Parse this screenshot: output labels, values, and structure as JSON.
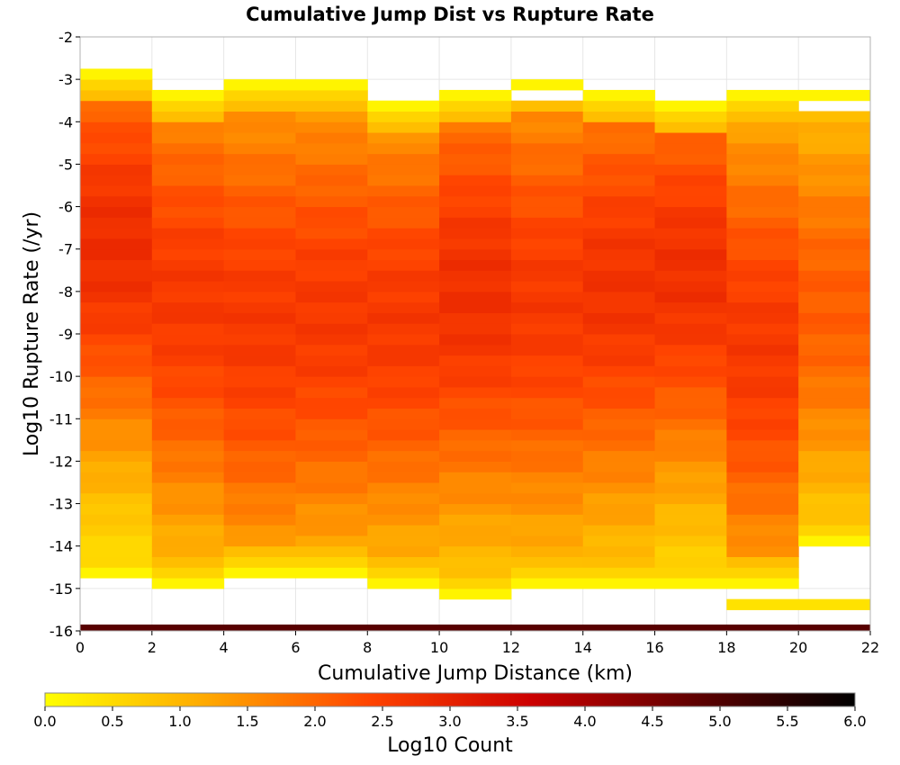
{
  "chart_data": {
    "type": "heatmap",
    "title": "Cumulative Jump Dist vs Rupture Rate",
    "xlabel": "Cumulative Jump Distance (km)",
    "ylabel": "Log10 Rupture Rate (/yr)",
    "xlim": [
      0,
      22
    ],
    "ylim": [
      -16,
      -2
    ],
    "x_bin_width": 2,
    "y_bin_width": 0.25,
    "xticks": [
      "0",
      "2",
      "4",
      "6",
      "8",
      "10",
      "12",
      "14",
      "16",
      "18",
      "20",
      "22"
    ],
    "yticks": [
      "-2",
      "-3",
      "-4",
      "-5",
      "-6",
      "-7",
      "-8",
      "-9",
      "-10",
      "-11",
      "-12",
      "-13",
      "-14",
      "-15",
      "-16"
    ],
    "grid": true,
    "colorbar": {
      "label": "Log10 Count",
      "range": [
        0,
        6
      ],
      "ticks": [
        "0.0",
        "0.5",
        "1.0",
        "1.5",
        "2.0",
        "2.5",
        "3.0",
        "3.5",
        "4.0",
        "4.5",
        "5.0",
        "5.5",
        "6.0"
      ],
      "colors": [
        "#ffff00",
        "#ffa800",
        "#ff4400",
        "#cc0000",
        "#600000",
        "#000000"
      ]
    },
    "columns": [
      {
        "x_start": 0,
        "y_top": -2.75,
        "y_bottom": -14.75,
        "peak_center": -6.9,
        "peak_value": 2.8,
        "width": 4.0
      },
      {
        "x_start": 2,
        "y_top": -3.25,
        "y_bottom": -15.0,
        "peak_center": -8.2,
        "peak_value": 2.6,
        "width": 4.4
      },
      {
        "x_start": 4,
        "y_top": -3.0,
        "y_bottom": -14.75,
        "peak_center": -8.8,
        "peak_value": 2.6,
        "width": 4.6
      },
      {
        "x_start": 6,
        "y_top": -3.0,
        "y_bottom": -14.75,
        "peak_center": -8.6,
        "peak_value": 2.6,
        "width": 4.4
      },
      {
        "x_start": 8,
        "y_top": -3.5,
        "y_bottom": -15.0,
        "peak_center": -8.7,
        "peak_value": 2.6,
        "width": 4.2
      },
      {
        "x_start": 10,
        "y_top": -3.25,
        "y_bottom": -15.25,
        "peak_center": -8.0,
        "peak_value": 2.75,
        "width": 4.4
      },
      {
        "x_start": 12,
        "y_top": -3.0,
        "y_bottom": -15.0,
        "peak_center": -8.3,
        "peak_value": 2.6,
        "width": 4.4
      },
      {
        "x_start": 14,
        "y_top": -3.25,
        "y_bottom": -15.0,
        "peak_center": -7.9,
        "peak_value": 2.7,
        "width": 4.3
      },
      {
        "x_start": 16,
        "y_top": -3.5,
        "y_bottom": -15.0,
        "peak_center": -7.6,
        "peak_value": 2.75,
        "width": 4.0
      },
      {
        "x_start": 18,
        "y_top": -3.25,
        "y_bottom": -15.0,
        "peak_center": -9.3,
        "peak_value": 2.6,
        "width": 4.4
      },
      {
        "x_start": 20,
        "y_top": -3.25,
        "y_bottom": -14.0,
        "peak_center": -8.3,
        "peak_value": 2.1,
        "width": 3.6
      }
    ],
    "empty_cells": [
      {
        "x_start": 12,
        "y_low": -3.5,
        "y_high": -3.25
      },
      {
        "x_start": 20,
        "y_low": -3.75,
        "y_high": -3.5
      }
    ],
    "extra_cells": [
      {
        "x_start": 18,
        "x_end": 22,
        "y_low": -15.5,
        "y_high": -15.25,
        "value": 0.4
      }
    ],
    "bottom_band": {
      "x_start": 0,
      "x_end": 22,
      "y_low": -16.0,
      "y_high": -15.85,
      "value": 4.9
    }
  }
}
